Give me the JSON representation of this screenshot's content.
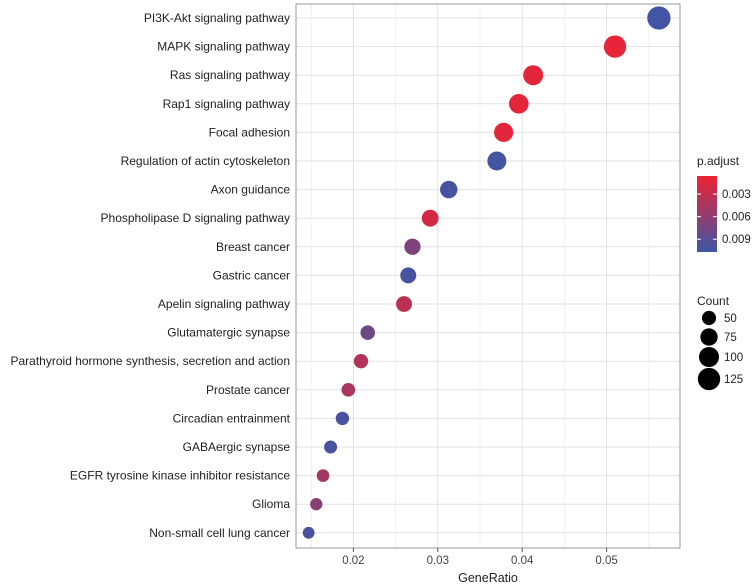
{
  "chart_data": {
    "type": "scatter",
    "xlabel": "GeneRatio",
    "x_ticks": [
      0.02,
      0.03,
      0.04,
      0.05
    ],
    "x_tick_labels": [
      "0.02",
      "0.03",
      "0.04",
      "0.05"
    ],
    "xlim": [
      0.0132,
      0.0587
    ],
    "grid": true,
    "categories": [
      "PI3K-Akt signaling pathway",
      "MAPK signaling pathway",
      "Ras signaling pathway",
      "Rap1 signaling pathway",
      "Focal adhesion",
      "Regulation of actin cytoskeleton",
      "Axon guidance",
      "Phospholipase D signaling pathway",
      "Breast cancer",
      "Gastric cancer",
      "Apelin signaling pathway",
      "Glutamatergic synapse",
      "Parathyroid hormone synthesis, secretion and action",
      "Prostate cancer",
      "Circadian entrainment",
      "GABAergic synapse",
      "EGFR tyrosine kinase inhibitor resistance",
      "Glioma",
      "Non-small cell lung cancer"
    ],
    "points": [
      {
        "label": "PI3K-Akt signaling pathway",
        "gene_ratio": 0.0562,
        "count": 136,
        "p_adjust": 0.0105
      },
      {
        "label": "MAPK signaling pathway",
        "gene_ratio": 0.051,
        "count": 124,
        "p_adjust": 0.001
      },
      {
        "label": "Ras signaling pathway",
        "gene_ratio": 0.0413,
        "count": 100,
        "p_adjust": 0.0012
      },
      {
        "label": "Rap1 signaling pathway",
        "gene_ratio": 0.0396,
        "count": 96,
        "p_adjust": 0.0011
      },
      {
        "label": "Focal adhesion",
        "gene_ratio": 0.0378,
        "count": 92,
        "p_adjust": 0.0013
      },
      {
        "label": "Regulation of actin cytoskeleton",
        "gene_ratio": 0.037,
        "count": 90,
        "p_adjust": 0.0103
      },
      {
        "label": "Axon guidance",
        "gene_ratio": 0.0313,
        "count": 76,
        "p_adjust": 0.0102
      },
      {
        "label": "Phospholipase D signaling pathway",
        "gene_ratio": 0.0291,
        "count": 71,
        "p_adjust": 0.002
      },
      {
        "label": "Breast cancer",
        "gene_ratio": 0.027,
        "count": 66,
        "p_adjust": 0.007
      },
      {
        "label": "Gastric cancer",
        "gene_ratio": 0.0265,
        "count": 64,
        "p_adjust": 0.0101
      },
      {
        "label": "Apelin signaling pathway",
        "gene_ratio": 0.026,
        "count": 63,
        "p_adjust": 0.0035
      },
      {
        "label": "Glutamatergic synapse",
        "gene_ratio": 0.0217,
        "count": 53,
        "p_adjust": 0.008
      },
      {
        "label": "Parathyroid hormone synthesis, secretion and action",
        "gene_ratio": 0.0209,
        "count": 51,
        "p_adjust": 0.004
      },
      {
        "label": "Prostate cancer",
        "gene_ratio": 0.0194,
        "count": 47,
        "p_adjust": 0.0045
      },
      {
        "label": "Circadian entrainment",
        "gene_ratio": 0.0187,
        "count": 45,
        "p_adjust": 0.01
      },
      {
        "label": "GABAergic synapse",
        "gene_ratio": 0.0173,
        "count": 42,
        "p_adjust": 0.01
      },
      {
        "label": "EGFR tyrosine kinase inhibitor resistance",
        "gene_ratio": 0.0164,
        "count": 40,
        "p_adjust": 0.005
      },
      {
        "label": "Glioma",
        "gene_ratio": 0.0156,
        "count": 38,
        "p_adjust": 0.0065
      },
      {
        "label": "Non-small cell lung cancer",
        "gene_ratio": 0.0147,
        "count": 35,
        "p_adjust": 0.01
      }
    ],
    "color_scale": {
      "title": "p.adjust",
      "min": 0.0006,
      "max": 0.0107,
      "low_color": "#ee2233",
      "high_color": "#3d56a6",
      "ticks": [
        0.003,
        0.006,
        0.009
      ],
      "tick_labels": [
        "0.003",
        "0.006",
        "0.009"
      ]
    },
    "size_scale": {
      "title": "Count",
      "values": [
        50,
        75,
        100,
        125
      ],
      "labels": [
        "50",
        "75",
        "100",
        "125"
      ]
    },
    "legend_placement": "right",
    "colors": {
      "panel_border": "#999999",
      "grid_major": "#e2e2e2",
      "grid_minor": "#f0f0f0",
      "point_fill_count_legend": "#000000"
    }
  }
}
